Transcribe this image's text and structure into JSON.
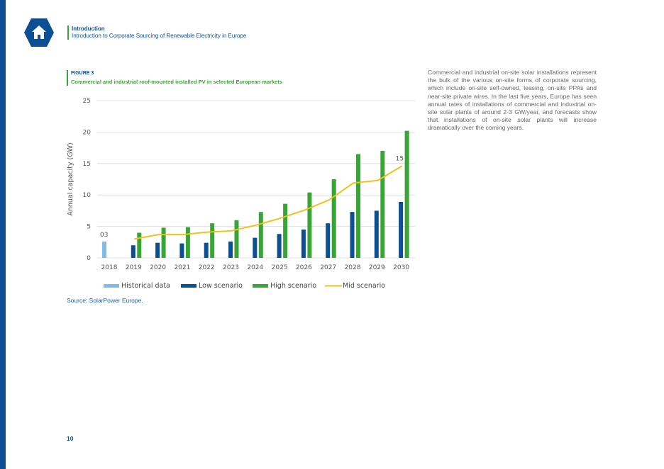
{
  "colors": {
    "brand_blue": "#0c4f95",
    "accent_green": "#3aa537",
    "historical": "#7fbce6",
    "low": "#0c4f95",
    "high": "#3aa537",
    "mid": "#f2c01c",
    "grid": "#d9d9d9",
    "link": "#1a62a8"
  },
  "icons": {
    "home": "home-icon"
  },
  "header": {
    "section": "Introduction",
    "subtitle": "Introduction to Corporate Sourcing of Renewable Electricity in Europe"
  },
  "figure": {
    "label": "FIGURE 3",
    "title": "Commercial and industrial roof-mounted installed PV in selected European markets"
  },
  "chart_data": {
    "type": "bar",
    "title": "Commercial and industrial roof-mounted installed PV in selected European markets",
    "ylabel": "Annual capacity (GW)",
    "xlabel": "",
    "ylim": [
      0,
      25
    ],
    "yticks": [
      0,
      5,
      10,
      15,
      20,
      25
    ],
    "grid": true,
    "legend_position": "bottom",
    "categories": [
      "2018",
      "2019",
      "2020",
      "2021",
      "2022",
      "2023",
      "2024",
      "2025",
      "2026",
      "2027",
      "2028",
      "2029",
      "2030"
    ],
    "series": [
      {
        "name": "Historical data",
        "type": "bar",
        "values": [
          2.6,
          null,
          null,
          null,
          null,
          null,
          null,
          null,
          null,
          null,
          null,
          null,
          null
        ]
      },
      {
        "name": "Low scenario",
        "type": "bar",
        "values": [
          null,
          2.0,
          2.4,
          2.3,
          2.4,
          2.6,
          3.2,
          3.8,
          4.5,
          5.5,
          7.3,
          7.5,
          8.9
        ]
      },
      {
        "name": "High scenario",
        "type": "bar",
        "values": [
          null,
          4.0,
          4.8,
          4.9,
          5.5,
          6.0,
          7.3,
          8.6,
          10.4,
          12.5,
          16.5,
          17.0,
          20.2
        ]
      },
      {
        "name": "Mid scenario",
        "type": "line",
        "values": [
          null,
          3.0,
          3.7,
          3.7,
          4.1,
          4.3,
          5.2,
          6.3,
          7.6,
          9.2,
          11.9,
          12.3,
          14.6
        ]
      }
    ],
    "annotations": [
      {
        "text": "03",
        "category": "2018",
        "y": 2.6
      },
      {
        "text": "15",
        "category": "2030",
        "y": 14.6
      }
    ]
  },
  "source": "Source: SolarPower Europe.",
  "body_text": "Commercial and industrial on-site solar installations represent the bulk of the various on-site forms of corporate sourcing, which include on-site self-owned, leasing, on-site PPAs and near-site private wires. In the last five years, Europe has seen annual rates of installations of commercial and industrial on-site solar plants of around 2-3 GW/year, and forecasts show that installations of on-site solar plants will increase dramatically over the coming years.",
  "page_number": "10"
}
